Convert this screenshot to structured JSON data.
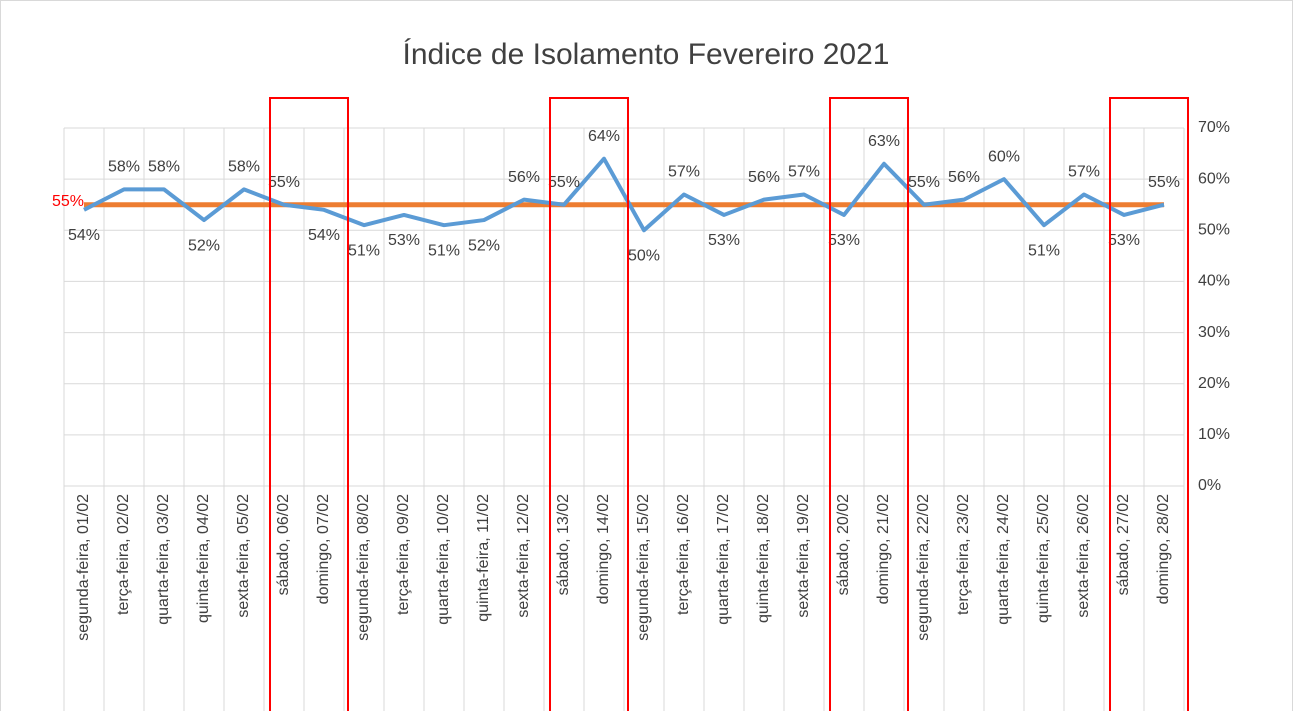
{
  "chart_data": {
    "type": "line",
    "title": "Índice de Isolamento Fevereiro 2021",
    "categories": [
      "segunda-feira, 01/02",
      "terça-feira, 02/02",
      "quarta-feira, 03/02",
      "quinta-feira, 04/02",
      "sexta-feira, 05/02",
      "sábado, 06/02",
      "domingo, 07/02",
      "segunda-feira, 08/02",
      "terça-feira, 09/02",
      "quarta-feira, 10/02",
      "quinta-feira, 11/02",
      "sexta-feira, 12/02",
      "sábado, 13/02",
      "domingo, 14/02",
      "segunda-feira, 15/02",
      "terça-feira, 16/02",
      "quarta-feira, 17/02",
      "quinta-feira, 18/02",
      "sexta-feira, 19/02",
      "sábado, 20/02",
      "domingo, 21/02",
      "segunda-feira, 22/02",
      "terça-feira, 23/02",
      "quarta-feira, 24/02",
      "quinta-feira, 25/02",
      "sexta-feira, 26/02",
      "sábado, 27/02",
      "domingo, 28/02"
    ],
    "series": [
      {
        "color": "#5b9bd5",
        "values": [
          54,
          58,
          58,
          52,
          58,
          55,
          54,
          51,
          53,
          51,
          52,
          56,
          55,
          64,
          50,
          57,
          53,
          56,
          57,
          53,
          63,
          55,
          56,
          60,
          51,
          57,
          53,
          55
        ],
        "value_labels": [
          "54%",
          "58%",
          "58%",
          "52%",
          "58%",
          "55%",
          "54%",
          "51%",
          "53%",
          "51%",
          "52%",
          "56%",
          "55%",
          "64%",
          "50%",
          "57%",
          "53%",
          "56%",
          "57%",
          "53%",
          "63%",
          "55%",
          "56%",
          "60%",
          "51%",
          "57%",
          "53%",
          "55%"
        ]
      }
    ],
    "reference_line": {
      "value": 55,
      "label": "55%",
      "color": "#ed7d31",
      "label_color": "#ff0000"
    },
    "highlight_ranges": [
      [
        5,
        6
      ],
      [
        12,
        13
      ],
      [
        19,
        20
      ],
      [
        26,
        27
      ]
    ],
    "highlight_color": "#ff0000",
    "ylim": [
      0,
      70
    ],
    "yticks": [
      {
        "value": 0,
        "label": "0%"
      },
      {
        "value": 10,
        "label": "10%"
      },
      {
        "value": 20,
        "label": "20%"
      },
      {
        "value": 30,
        "label": "30%"
      },
      {
        "value": 40,
        "label": "40%"
      },
      {
        "value": 50,
        "label": "50%"
      },
      {
        "value": 60,
        "label": "60%"
      },
      {
        "value": 70,
        "label": "70%"
      }
    ],
    "y_axis_side": "right",
    "grid": true
  }
}
